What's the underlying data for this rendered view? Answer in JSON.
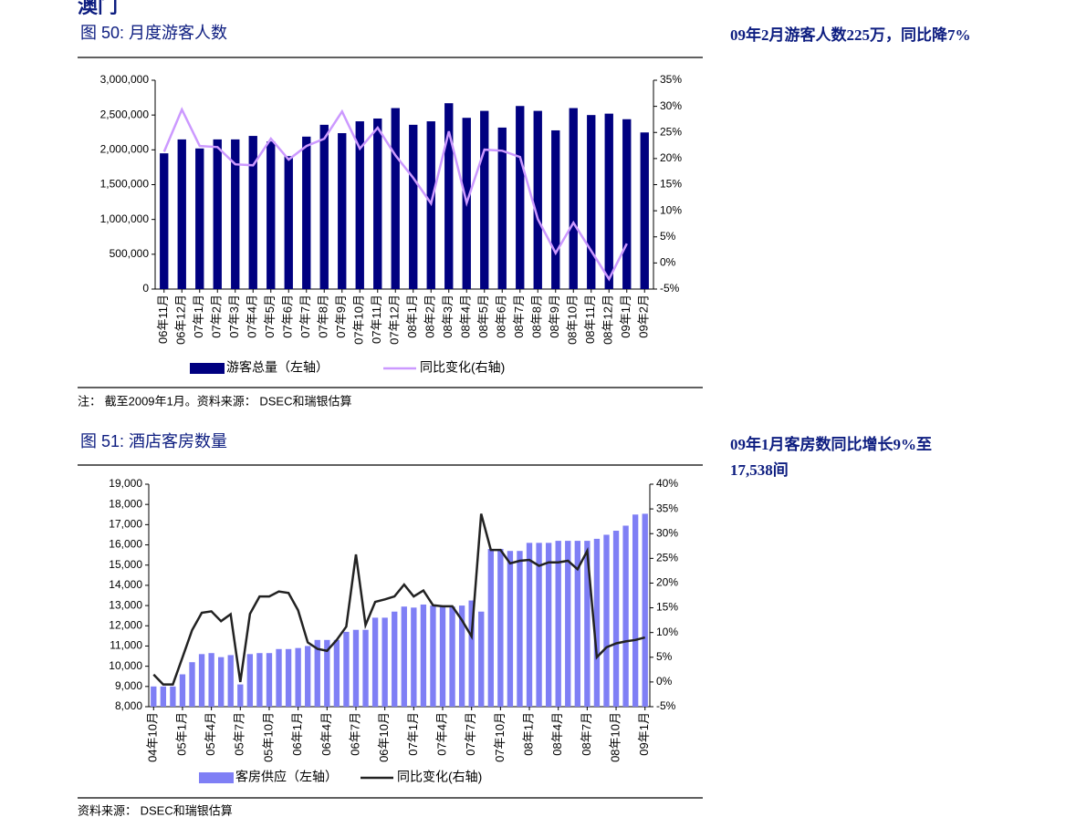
{
  "section_title": "澳门",
  "side_notes": [
    [
      "09年2月游客人数225万，同比降7%"
    ],
    [
      "09年1月客房数同比增长9%至",
      "17,538间"
    ]
  ],
  "notes": [
    "注： 截至2009年1月。资料来源： DSEC和瑞银估算",
    "资料来源： DSEC和瑞银估算"
  ],
  "chart_data": [
    {
      "type": "bar",
      "title": "图 50: 月度游客人数",
      "categories": [
        "06年11月",
        "06年12月",
        "07年1月",
        "07年2月",
        "07年3月",
        "07年4月",
        "07年5月",
        "07年6月",
        "07年7月",
        "07年8月",
        "07年9月",
        "07年10月",
        "07年11月",
        "07年12月",
        "08年1月",
        "08年2月",
        "08年3月",
        "08年4月",
        "08年5月",
        "08年6月",
        "08年7月",
        "08年8月",
        "08年9月",
        "08年10月",
        "08年11月",
        "08年12月",
        "09年1月",
        "09年2月"
      ],
      "series": [
        {
          "name": "游客总量（左轴）",
          "type": "bar",
          "color": "#000080",
          "values": [
            1950000,
            2150000,
            2020000,
            2150000,
            2150000,
            2200000,
            2120000,
            1910000,
            2190000,
            2360000,
            2240000,
            2410000,
            2450000,
            2600000,
            2360000,
            2410000,
            2670000,
            2460000,
            2560000,
            2320000,
            2630000,
            2560000,
            2280000,
            2600000,
            2500000,
            2520000,
            2440000,
            2250000
          ]
        },
        {
          "name": "同比变化(右轴)",
          "type": "line",
          "axis": "y2",
          "color": "#cc99ff",
          "values": [
            21.3,
            29.4,
            22.4,
            22.2,
            18.9,
            18.7,
            23.8,
            19.8,
            22.4,
            23.8,
            29,
            21.9,
            25.9,
            20.6,
            16.3,
            11.4,
            25.2,
            11.5,
            21.7,
            21.5,
            20.3,
            8.4,
            1.9,
            7.7,
            2.3,
            -3.1,
            3.7,
            null
          ]
        }
      ],
      "ylim": [
        0,
        3000000
      ],
      "yticks": [
        0,
        {
          "value": 500000,
          "label": "500,000"
        },
        {
          "value": 1000000,
          "label": "1,000,000"
        },
        {
          "value": 1500000,
          "label": "1,500,000"
        },
        {
          "value": 2000000,
          "label": "2,000,000"
        },
        {
          "value": 2500000,
          "label": "2,500,000"
        },
        {
          "value": 3000000,
          "label": "3,000,000"
        }
      ],
      "y2lim": [
        -5,
        35
      ],
      "y2ticks": [
        {
          "value": -5,
          "label": "-5%"
        },
        {
          "value": 0,
          "label": "0%"
        },
        {
          "value": 5,
          "label": "5%"
        },
        {
          "value": 10,
          "label": "10%"
        },
        {
          "value": 15,
          "label": "15%"
        },
        {
          "value": 20,
          "label": "20%"
        },
        {
          "value": 25,
          "label": "25%"
        },
        {
          "value": 30,
          "label": "30%"
        },
        {
          "value": 35,
          "label": "35%"
        }
      ],
      "grid": false,
      "legend": "bottom"
    },
    {
      "type": "bar",
      "title": "图 51: 酒店客房数量",
      "categories": [
        "04年10月",
        null,
        null,
        "05年1月",
        null,
        null,
        "05年4月",
        null,
        null,
        "05年7月",
        null,
        null,
        "05年10月",
        null,
        null,
        "06年1月",
        null,
        null,
        "06年4月",
        null,
        null,
        "06年7月",
        null,
        null,
        "06年10月",
        null,
        null,
        "07年1月",
        null,
        null,
        "07年4月",
        null,
        null,
        "07年7月",
        null,
        null,
        "07年10月",
        null,
        null,
        "08年1月",
        null,
        null,
        "08年4月",
        null,
        null,
        "08年7月",
        null,
        null,
        "08年10月",
        null,
        null,
        "09年1月"
      ],
      "series": [
        {
          "name": "客房供应（左轴）",
          "type": "bar",
          "color": "#7f7ff5",
          "values": [
            9000,
            9000,
            9000,
            9600,
            10200,
            10600,
            10650,
            10450,
            10550,
            9100,
            10600,
            10650,
            10650,
            10850,
            10850,
            10900,
            11000,
            11300,
            11300,
            11300,
            11700,
            11800,
            11800,
            12400,
            12400,
            12700,
            12950,
            12900,
            13050,
            13000,
            12950,
            12950,
            13000,
            13250,
            12700,
            15800,
            15800,
            15700,
            15700,
            16100,
            16100,
            16100,
            16200,
            16200,
            16200,
            16200,
            16300,
            16500,
            16700,
            16950,
            17500,
            17538
          ]
        },
        {
          "name": "同比变化(右轴)",
          "type": "line",
          "axis": "y2",
          "color": "#222222",
          "values": [
            1.5,
            -0.5,
            -0.5,
            5,
            10.5,
            14,
            14.3,
            12.3,
            13.7,
            0,
            13.8,
            17.3,
            17.3,
            18.3,
            18,
            14.5,
            8,
            6.7,
            6.3,
            8.5,
            11.2,
            25.8,
            11.5,
            16.2,
            16.7,
            17.3,
            19.7,
            17.3,
            18.5,
            15.5,
            15.3,
            15.3,
            12.5,
            9.2,
            34,
            26.7,
            26.7,
            24,
            24.5,
            24.7,
            23.5,
            24.2,
            24.2,
            24.5,
            22.8,
            26.5,
            5,
            7,
            7.8,
            8.2,
            8.5,
            9
          ]
        }
      ],
      "ylim": [
        8000,
        19000
      ],
      "yticks": [
        {
          "value": 8000,
          "label": "8,000"
        },
        {
          "value": 9000,
          "label": "9,000"
        },
        {
          "value": 10000,
          "label": "10,000"
        },
        {
          "value": 11000,
          "label": "11,000"
        },
        {
          "value": 12000,
          "label": "12,000"
        },
        {
          "value": 13000,
          "label": "13,000"
        },
        {
          "value": 14000,
          "label": "14,000"
        },
        {
          "value": 15000,
          "label": "15,000"
        },
        {
          "value": 16000,
          "label": "16,000"
        },
        {
          "value": 17000,
          "label": "17,000"
        },
        {
          "value": 18000,
          "label": "18,000"
        },
        {
          "value": 19000,
          "label": "19,000"
        }
      ],
      "y2lim": [
        -5,
        40
      ],
      "y2ticks": [
        {
          "value": -5,
          "label": "-5%"
        },
        {
          "value": 0,
          "label": "0%"
        },
        {
          "value": 5,
          "label": "5%"
        },
        {
          "value": 10,
          "label": "10%"
        },
        {
          "value": 15,
          "label": "15%"
        },
        {
          "value": 20,
          "label": "20%"
        },
        {
          "value": 25,
          "label": "25%"
        },
        {
          "value": 30,
          "label": "30%"
        },
        {
          "value": 35,
          "label": "35%"
        },
        {
          "value": 40,
          "label": "40%"
        }
      ],
      "grid": false,
      "legend": "bottom"
    }
  ]
}
